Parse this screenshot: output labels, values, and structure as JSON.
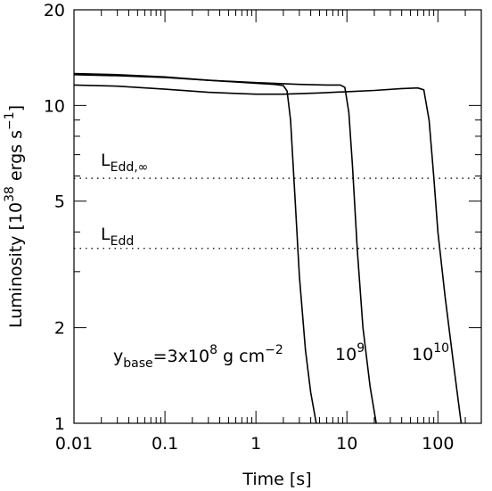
{
  "chart_data": {
    "type": "line",
    "xlabel": "Time [s]",
    "ylabel": "Luminosity [10",
    "ylabel_sup": "38",
    "ylabel_tail": " ergs s",
    "ylabel_sup2": "−1",
    "ylabel_end": "]",
    "xscale": "log",
    "yscale": "log",
    "xlim": [
      0.01,
      300
    ],
    "ylim": [
      1,
      20
    ],
    "xticks": [
      {
        "value": 0.01,
        "label": "0.01"
      },
      {
        "value": 0.1,
        "label": "0.1"
      },
      {
        "value": 1,
        "label": "1"
      },
      {
        "value": 10,
        "label": "10"
      },
      {
        "value": 100,
        "label": "100"
      }
    ],
    "yticks": [
      {
        "value": 1,
        "label": "1"
      },
      {
        "value": 2,
        "label": "2"
      },
      {
        "value": 5,
        "label": "5"
      },
      {
        "value": 10,
        "label": "10"
      },
      {
        "value": 20,
        "label": "20"
      }
    ],
    "grid": false,
    "series": [
      {
        "name": "3x10^8",
        "x": [
          0.01,
          0.03,
          0.1,
          0.3,
          1,
          1.6,
          2.0,
          2.2,
          2.4,
          2.7,
          3.0,
          3.5,
          4.0,
          4.6
        ],
        "y": [
          12.5,
          12.4,
          12.25,
          12.0,
          11.75,
          11.65,
          11.55,
          11.1,
          9.0,
          5.0,
          2.9,
          1.7,
          1.25,
          1.0
        ]
      },
      {
        "name": "10^9",
        "x": [
          0.01,
          0.03,
          0.1,
          0.3,
          1,
          3,
          6,
          8.5,
          9.5,
          10.5,
          11.5,
          13,
          15,
          18,
          21
        ],
        "y": [
          12.6,
          12.5,
          12.3,
          12.0,
          11.8,
          11.65,
          11.6,
          11.6,
          11.4,
          9.5,
          6.5,
          3.5,
          2.0,
          1.3,
          1.0
        ]
      },
      {
        "name": "10^10",
        "x": [
          0.01,
          0.03,
          0.1,
          0.3,
          1,
          2,
          5,
          10,
          20,
          40,
          60,
          70,
          80,
          90,
          100,
          120,
          150,
          180
        ],
        "y": [
          11.6,
          11.5,
          11.25,
          11.0,
          10.85,
          10.85,
          10.95,
          11.05,
          11.15,
          11.3,
          11.35,
          11.2,
          9.0,
          6.0,
          4.0,
          2.5,
          1.5,
          1.0
        ]
      }
    ],
    "reference_lines": [
      {
        "y": 5.9,
        "style": "dotted",
        "label": "L",
        "sub": "Edd,∞"
      },
      {
        "y": 3.55,
        "style": "dotted",
        "label": "L",
        "sub": "Edd"
      }
    ],
    "annotations": {
      "a1_main": "y",
      "a1_sub": "base",
      "a1_rest": "=3x10",
      "a1_sup": "8",
      "a1_tail": " g cm",
      "a1_sup2": "−2",
      "a2_main": "10",
      "a2_sup": "9",
      "a3_main": "10",
      "a3_sup": "10"
    }
  }
}
